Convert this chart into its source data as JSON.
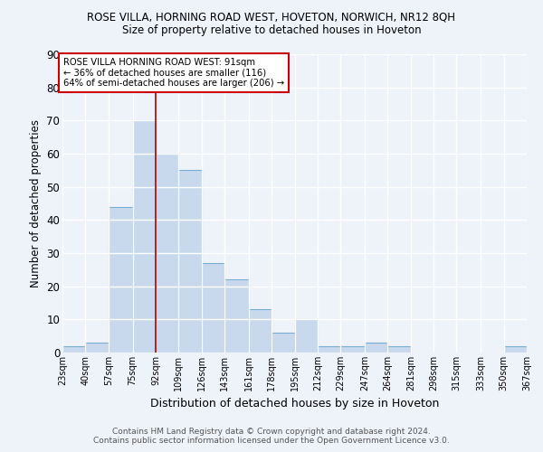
{
  "title": "ROSE VILLA, HORNING ROAD WEST, HOVETON, NORWICH, NR12 8QH",
  "subtitle": "Size of property relative to detached houses in Hoveton",
  "xlabel": "Distribution of detached houses by size in Hoveton",
  "ylabel": "Number of detached properties",
  "bin_edges": [
    23,
    40,
    57,
    75,
    92,
    109,
    126,
    143,
    161,
    178,
    195,
    212,
    229,
    247,
    264,
    281,
    298,
    315,
    333,
    350,
    367
  ],
  "bar_heights": [
    2,
    3,
    44,
    70,
    60,
    55,
    27,
    22,
    13,
    6,
    10,
    2,
    2,
    3,
    2,
    0,
    0,
    0,
    0,
    2
  ],
  "bar_face_color": "#c8d9ed",
  "bar_edge_color": "#7aadd4",
  "vline_x": 92,
  "vline_color": "#aa0000",
  "annotation_line1": "ROSE VILLA HORNING ROAD WEST: 91sqm",
  "annotation_line2": "← 36% of detached houses are smaller (116)",
  "annotation_line3": "64% of semi-detached houses are larger (206) →",
  "annotation_box_edgecolor": "#cc0000",
  "ylim": [
    0,
    90
  ],
  "yticks": [
    0,
    10,
    20,
    30,
    40,
    50,
    60,
    70,
    80,
    90
  ],
  "footer_line1": "Contains HM Land Registry data © Crown copyright and database right 2024.",
  "footer_line2": "Contains public sector information licensed under the Open Government Licence v3.0.",
  "background_color": "#eef2f9",
  "grid_color": "#ffffff",
  "tick_labels": [
    "23sqm",
    "40sqm",
    "57sqm",
    "75sqm",
    "92sqm",
    "109sqm",
    "126sqm",
    "143sqm",
    "161sqm",
    "178sqm",
    "195sqm",
    "212sqm",
    "229sqm",
    "247sqm",
    "264sqm",
    "281sqm",
    "298sqm",
    "315sqm",
    "333sqm",
    "350sqm",
    "367sqm"
  ]
}
